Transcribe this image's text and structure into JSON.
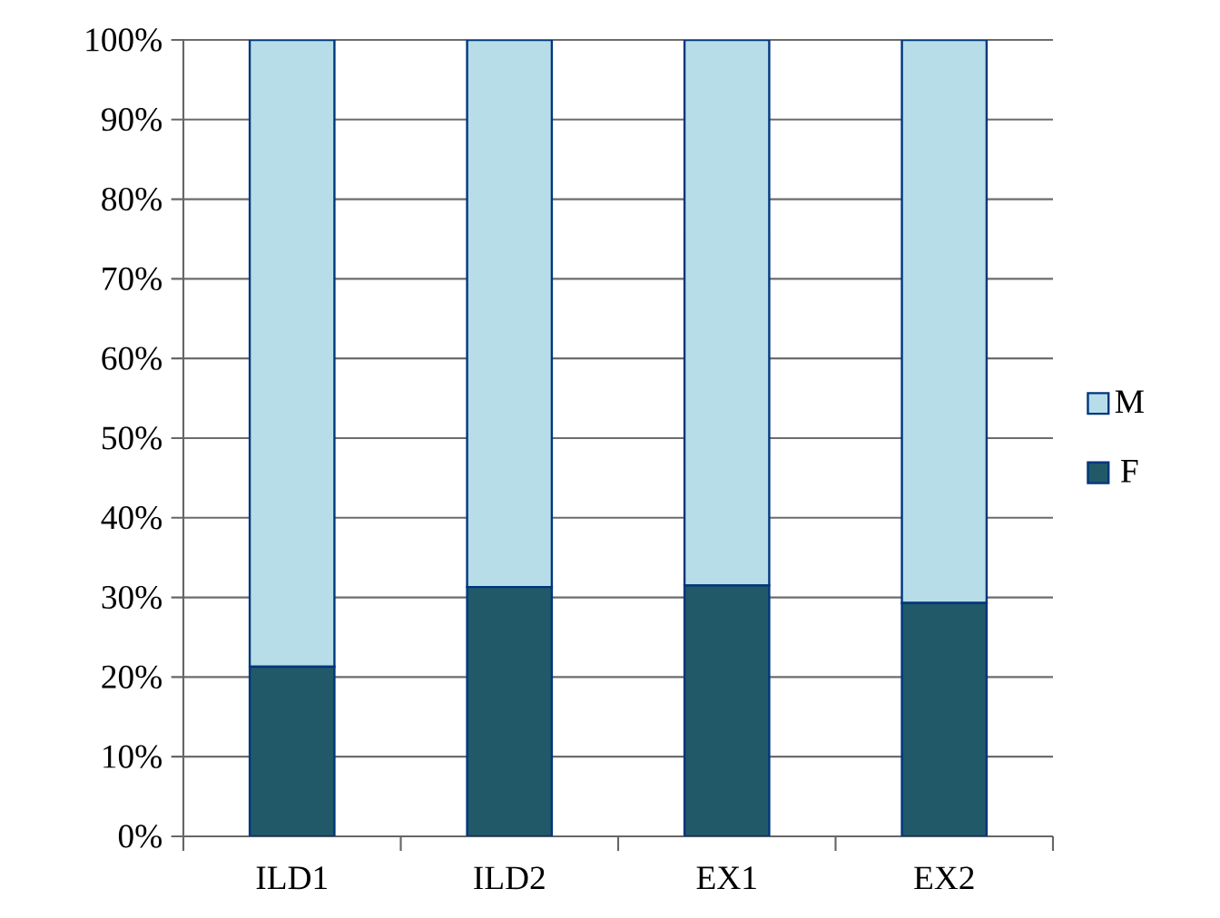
{
  "chart_data": {
    "type": "bar",
    "stacked": true,
    "categories": [
      "ILD1",
      "ILD2",
      "EX1",
      "EX2"
    ],
    "series": [
      {
        "name": "F",
        "color": "#215968",
        "values": [
          21.3,
          31.3,
          31.5,
          29.3
        ]
      },
      {
        "name": "M",
        "color": "#b7dde8",
        "values": [
          78.7,
          68.7,
          68.5,
          70.7
        ]
      }
    ],
    "ylim": [
      0,
      100
    ],
    "yticks": [
      {
        "value": 0,
        "label": "0%"
      },
      {
        "value": 10,
        "label": "10%"
      },
      {
        "value": 20,
        "label": "20%"
      },
      {
        "value": 30,
        "label": "30%"
      },
      {
        "value": 40,
        "label": "40%"
      },
      {
        "value": 50,
        "label": "50%"
      },
      {
        "value": 60,
        "label": "60%"
      },
      {
        "value": 70,
        "label": "70%"
      },
      {
        "value": 80,
        "label": "80%"
      },
      {
        "value": 90,
        "label": "90%"
      },
      {
        "value": 100,
        "label": "100%"
      }
    ],
    "grid": "y",
    "legend": "right"
  }
}
